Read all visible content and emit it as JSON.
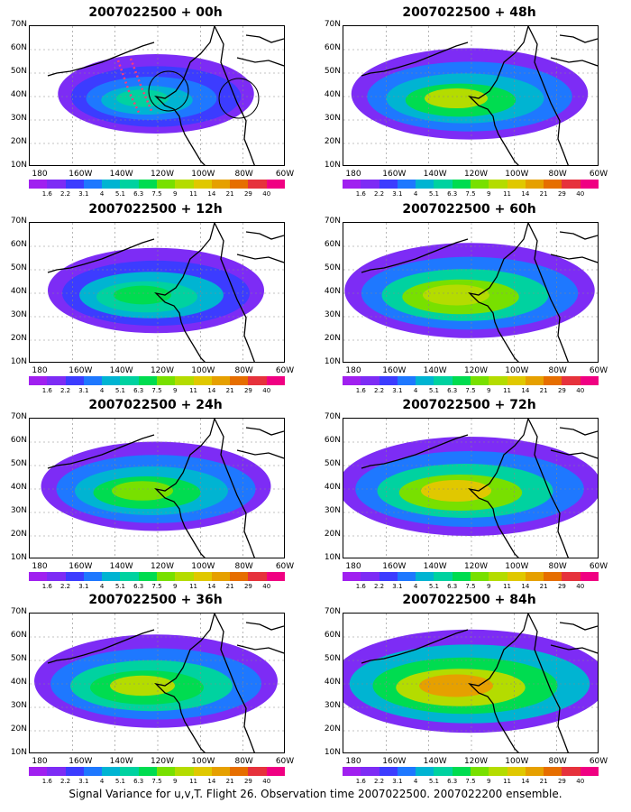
{
  "panels": [
    {
      "title": "2007022500 + 00h",
      "col": 0,
      "row": 0,
      "intensity": 0.25
    },
    {
      "title": "2007022500 + 12h",
      "col": 0,
      "row": 1,
      "intensity": 0.4
    },
    {
      "title": "2007022500 + 24h",
      "col": 0,
      "row": 2,
      "intensity": 0.5
    },
    {
      "title": "2007022500 + 36h",
      "col": 0,
      "row": 3,
      "intensity": 0.6
    },
    {
      "title": "2007022500 + 48h",
      "col": 1,
      "row": 0,
      "intensity": 0.55
    },
    {
      "title": "2007022500 + 60h",
      "col": 1,
      "row": 1,
      "intensity": 0.65
    },
    {
      "title": "2007022500 + 72h",
      "col": 1,
      "row": 2,
      "intensity": 0.75
    },
    {
      "title": "2007022500 + 84h",
      "col": 1,
      "row": 3,
      "intensity": 0.85
    }
  ],
  "y_ticks": [
    "70N",
    "60N",
    "50N",
    "40N",
    "30N",
    "20N",
    "10N"
  ],
  "x_ticks": [
    "180",
    "160W",
    "140W",
    "120W",
    "100W",
    "80W",
    "60W"
  ],
  "colorbar": {
    "labels": [
      "1.6",
      "2.2",
      "3.1",
      "4",
      "5.1",
      "6.3",
      "7.5",
      "9",
      "11",
      "14",
      "21",
      "29",
      "40"
    ],
    "colors": [
      "#a020f0",
      "#7d2cf5",
      "#3c3cff",
      "#1e78ff",
      "#00b4d2",
      "#00d2a0",
      "#00dc50",
      "#78e000",
      "#b4dc00",
      "#e0c800",
      "#e6a000",
      "#e66e00",
      "#e6323c",
      "#f00082"
    ]
  },
  "caption": "Signal Variance for u,v,T. Flight 26. Observation time 2007022500. 2007022200 ensemble."
}
